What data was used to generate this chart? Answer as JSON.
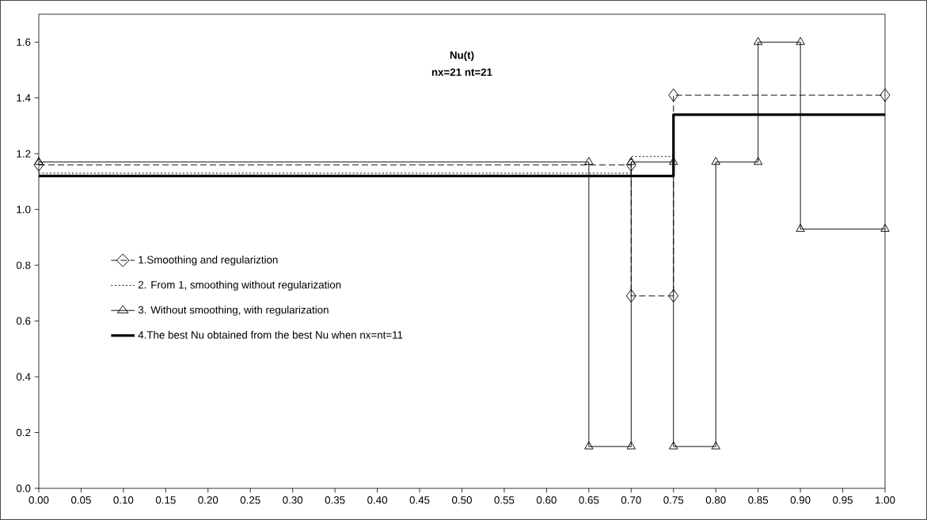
{
  "chart_data": {
    "type": "line",
    "title": "Nu(t)",
    "subtitle": "nx=21 nt=21",
    "xlim": [
      0,
      1
    ],
    "ylim": [
      0,
      1.7
    ],
    "xticks": [
      {
        "value": 0,
        "label": "0.00"
      },
      {
        "value": 0.05,
        "label": "0.05"
      },
      {
        "value": 0.1,
        "label": "0.10"
      },
      {
        "value": 0.15,
        "label": "0.15"
      },
      {
        "value": 0.2,
        "label": "0.20"
      },
      {
        "value": 0.25,
        "label": "0.25"
      },
      {
        "value": 0.3,
        "label": "0.30"
      },
      {
        "value": 0.35,
        "label": "0.35"
      },
      {
        "value": 0.4,
        "label": "0.40"
      },
      {
        "value": 0.45,
        "label": "0.45"
      },
      {
        "value": 0.5,
        "label": "0.50"
      },
      {
        "value": 0.55,
        "label": "0.55"
      },
      {
        "value": 0.6,
        "label": "0.60"
      },
      {
        "value": 0.65,
        "label": "0.65"
      },
      {
        "value": 0.7,
        "label": "0.70"
      },
      {
        "value": 0.75,
        "label": "0.75"
      },
      {
        "value": 0.8,
        "label": "0.80"
      },
      {
        "value": 0.85,
        "label": "0.85"
      },
      {
        "value": 0.9,
        "label": "0.90"
      },
      {
        "value": 0.95,
        "label": "0.95"
      },
      {
        "value": 1,
        "label": "1.00"
      }
    ],
    "yticks": [
      {
        "value": 0,
        "label": "0.0"
      },
      0.2,
      0.4,
      0.6,
      0.8,
      {
        "value": 1,
        "label": "1.0"
      },
      1.2,
      1.4,
      1.6
    ],
    "grid": false,
    "legend": "left",
    "series": [
      {
        "name": "1.Smoothing and regulariztion",
        "color": "#000000",
        "line_style": "dashed",
        "marker": "diamond",
        "x": [
          0,
          0.7,
          0.7,
          0.75,
          0.75,
          1
        ],
        "values": [
          1.16,
          1.16,
          0.69,
          0.69,
          1.41,
          1.41
        ]
      },
      {
        "name": "2. From 1, smoothing without regularization",
        "color": "#000000",
        "line_style": "dotted",
        "marker": "none",
        "x": [
          0,
          0.7,
          0.7,
          0.75
        ],
        "values": [
          1.13,
          1.13,
          1.19,
          1.19
        ]
      },
      {
        "name": "3. Without smoothing, with regularization",
        "color": "#000000",
        "line_style": "solid",
        "marker": "triangle",
        "x": [
          0,
          0.65,
          0.65,
          0.7,
          0.7,
          0.75,
          0.75,
          0.8,
          0.8,
          0.85,
          0.85,
          0.9,
          0.9,
          1
        ],
        "values": [
          1.17,
          1.17,
          0.15,
          0.15,
          1.17,
          1.17,
          0.15,
          0.15,
          1.17,
          1.17,
          1.6,
          1.6,
          0.93,
          0.93
        ]
      },
      {
        "name": "4.The best Nu obtained from the best Nu when nx=nt=11",
        "color": "#000000",
        "line_style": "solid",
        "marker": "none",
        "x": [
          0,
          0.75,
          0.75,
          1
        ],
        "values": [
          1.12,
          1.12,
          1.34,
          1.34
        ]
      }
    ]
  }
}
